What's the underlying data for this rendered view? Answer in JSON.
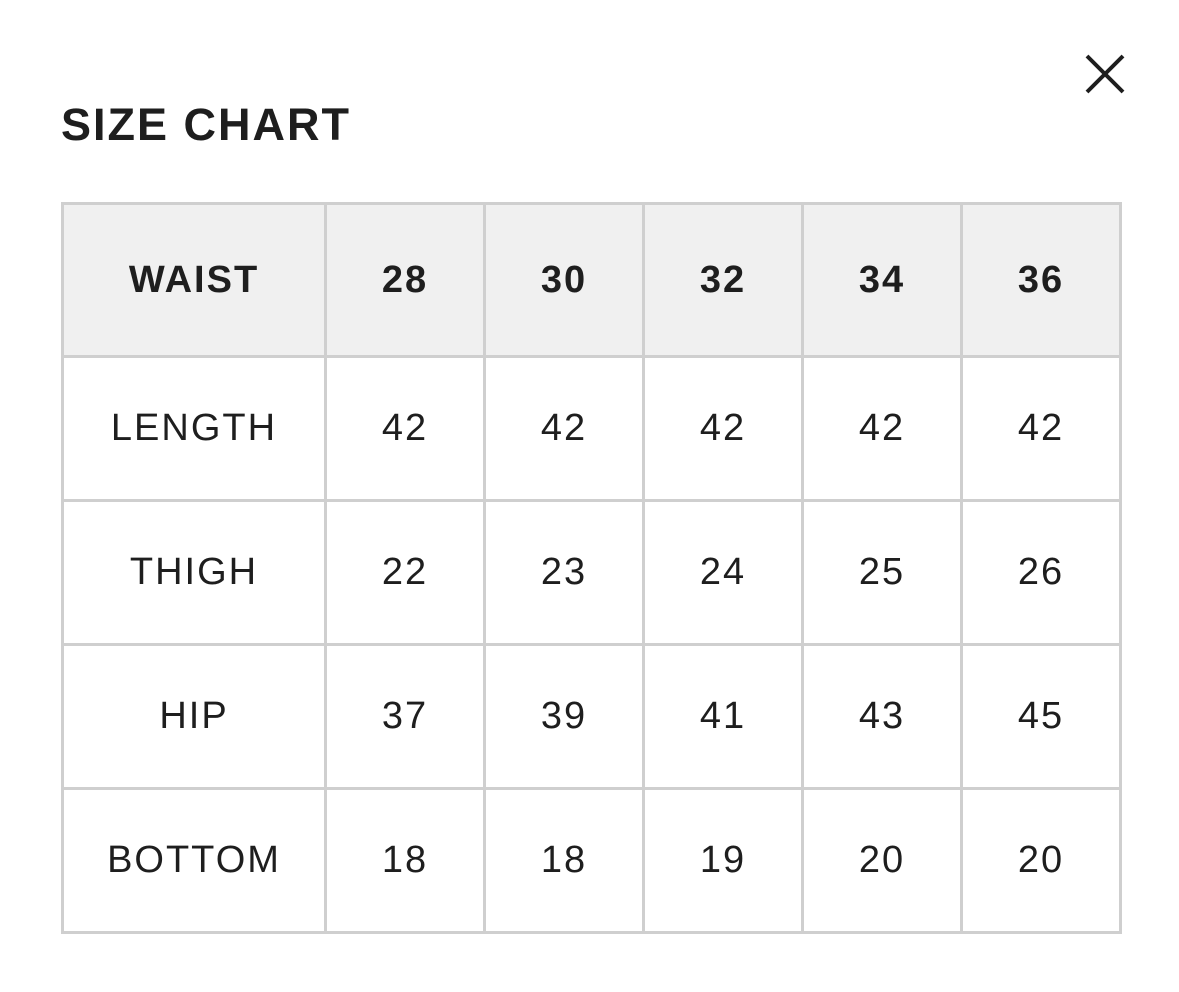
{
  "title": "SIZE CHART",
  "close_icon": "close-x-icon",
  "colors": {
    "header_bg": "#f0f0f0",
    "border": "#cfcfcf",
    "text": "#1e1e1e"
  },
  "table": {
    "header": [
      "WAIST",
      "28",
      "30",
      "32",
      "34",
      "36"
    ],
    "rows": [
      [
        "LENGTH",
        "42",
        "42",
        "42",
        "42",
        "42"
      ],
      [
        "THIGH",
        "22",
        "23",
        "24",
        "25",
        "26"
      ],
      [
        "HIP",
        "37",
        "39",
        "41",
        "43",
        "45"
      ],
      [
        "BOTTOM",
        "18",
        "18",
        "19",
        "20",
        "20"
      ]
    ]
  }
}
